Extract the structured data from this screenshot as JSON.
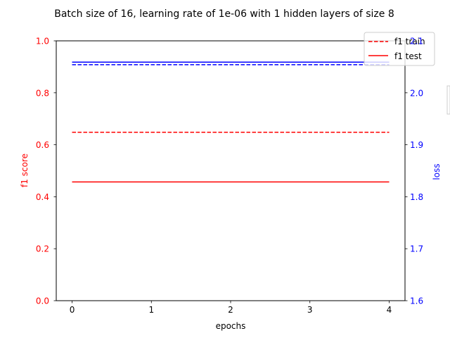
{
  "chart_data": {
    "type": "line",
    "title": "Batch size of 16, learning rate of 1e-06 with 1 hidden layers of size 8",
    "xlabel": "epochs",
    "ylabel_left": "f1 score",
    "ylabel_right": "loss",
    "x": [
      0,
      1,
      2,
      3,
      4
    ],
    "xlim": [
      -0.2,
      4.2
    ],
    "ylim_left": [
      0.0,
      1.0
    ],
    "ylim_right": [
      1.6,
      2.1
    ],
    "x_ticks": [
      "0",
      "1",
      "2",
      "3",
      "4"
    ],
    "y_ticks_left": [
      "0.0",
      "0.2",
      "0.4",
      "0.6",
      "0.8",
      "1.0"
    ],
    "y_ticks_right": [
      "1.6",
      "1.7",
      "1.8",
      "1.9",
      "2.0",
      "2.1"
    ],
    "grid": false,
    "legend_position": "top-right",
    "colors": {
      "left_axis": "#ff0000",
      "right_axis": "#0000ff"
    },
    "series": [
      {
        "name": "f1 train",
        "axis": "left",
        "color": "#ff0000",
        "style": "dashed",
        "values": [
          0.648,
          0.648,
          0.648,
          0.648,
          0.648
        ]
      },
      {
        "name": "f1 test",
        "axis": "left",
        "color": "#ff0000",
        "style": "solid",
        "values": [
          0.457,
          0.457,
          0.457,
          0.457,
          0.457
        ]
      },
      {
        "axis": "right",
        "color": "#0000ff",
        "style": "dashed",
        "values": [
          2.054,
          2.054,
          2.054,
          2.054,
          2.054
        ]
      },
      {
        "axis": "right",
        "color": "#0000ff",
        "style": "solid",
        "values": [
          2.059,
          2.059,
          2.059,
          2.059,
          2.059
        ]
      }
    ]
  }
}
